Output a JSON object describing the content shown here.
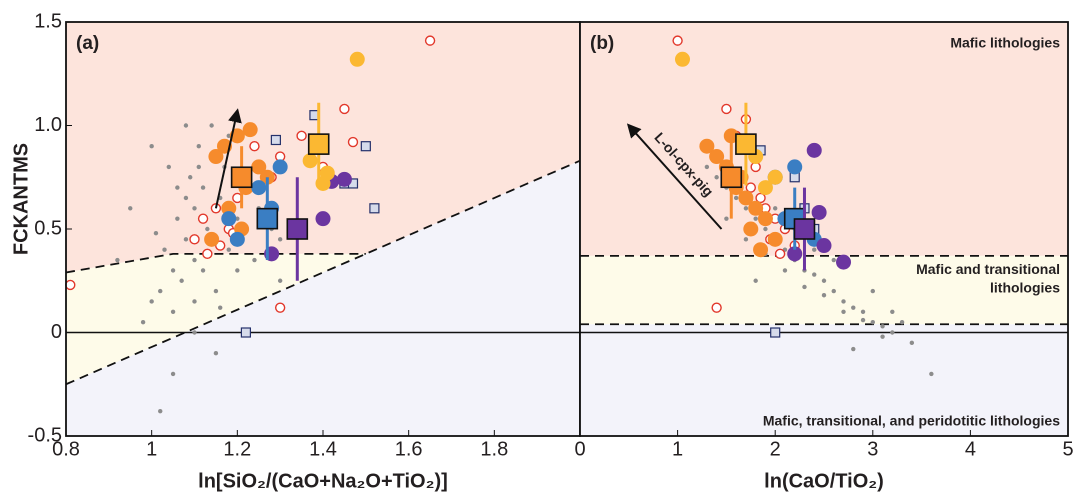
{
  "chart_data": [
    {
      "type": "scatter",
      "panel_label": "(a)",
      "ylabel": "FCKANTMS",
      "xlabel": "ln[SiO₂/(CaO+Na₂O+TiO₂)]",
      "xlim": [
        0.8,
        2.0
      ],
      "ylim": [
        -0.5,
        1.5
      ],
      "xticks": [
        0.8,
        1,
        1.2,
        1.4,
        1.6,
        1.8
      ],
      "yticks": [
        -0.5,
        0,
        0.5,
        {
          "value": 1,
          "label": "1.0"
        },
        1.5
      ],
      "hlines": [
        0
      ],
      "regions": [
        {
          "color": "#fde4dc",
          "x": [
            0.8,
            2.0,
            2.0,
            1.5,
            1.05,
            0.8
          ],
          "y": [
            1.5,
            1.5,
            0.83,
            0.38,
            0.38,
            0.29
          ]
        },
        {
          "color": "#fefbe9",
          "x": [
            0.8,
            1.05,
            1.5,
            0.8
          ],
          "y": [
            0.29,
            0.38,
            0.38,
            -0.25
          ]
        },
        {
          "color": "#f3f3fa",
          "x": [
            0.8,
            2.0,
            2.0,
            0.8
          ],
          "y": [
            -0.25,
            0.83,
            -0.5,
            -0.5
          ]
        }
      ],
      "boundaries": [
        {
          "x": [
            0.8,
            1.05,
            1.5
          ],
          "y": [
            0.29,
            0.38,
            0.38
          ]
        },
        {
          "x": [
            0.8,
            2.0
          ],
          "y": [
            -0.25,
            0.83
          ]
        }
      ],
      "series": [
        {
          "marker": "dot",
          "color": "#8c8c8c",
          "x": [
            1.02,
            1.05,
            1.08,
            1.1,
            1.12,
            1.15,
            1.18,
            1.2,
            1.05,
            1.07,
            1.1,
            1.13,
            1.16,
            1.0,
            0.98,
            1.03,
            1.06,
            1.09,
            1.11,
            1.14,
            1.17,
            1.22,
            1.25,
            1.28,
            1.3,
            1.12,
            1.15,
            1.08,
            1.04,
            0.95,
            1.0,
            1.1,
            1.2,
            1.15,
            1.05,
            1.02,
            1.18,
            1.24,
            1.3,
            1.35,
            1.1,
            1.06,
            0.92,
            1.13,
            1.27,
            1.08,
            1.16,
            1.2,
            1.01,
            1.11
          ],
          "values": [
            0.2,
            0.3,
            0.45,
            0.6,
            0.7,
            0.85,
            0.95,
            1.05,
            0.1,
            0.25,
            0.35,
            0.5,
            0.65,
            0.15,
            0.05,
            0.4,
            0.55,
            0.75,
            0.9,
            1.0,
            0.8,
            0.7,
            0.6,
            0.5,
            0.45,
            0.3,
            0.2,
            0.65,
            0.8,
            0.6,
            0.9,
            0.15,
            0.3,
            -0.1,
            -0.2,
            -0.38,
            0.4,
            0.35,
            0.25,
            0.5,
            0.0,
            0.7,
            0.35,
            0.45,
            0.55,
            1.0,
            0.12,
            0.55,
            0.48,
            0.8
          ]
        },
        {
          "marker": "circle-open",
          "color": "#e2382b",
          "x": [
            1.1,
            1.12,
            1.15,
            1.18,
            1.2,
            1.22,
            1.25,
            1.28,
            1.3,
            1.13,
            1.16,
            1.19,
            1.24,
            1.35,
            1.4,
            1.45,
            1.65,
            1.47,
            0.81,
            1.3
          ],
          "values": [
            0.45,
            0.55,
            0.6,
            0.5,
            0.65,
            0.7,
            0.8,
            0.75,
            0.85,
            0.38,
            0.42,
            0.48,
            0.9,
            0.95,
            0.8,
            1.08,
            1.41,
            0.92,
            0.23,
            0.12
          ]
        },
        {
          "marker": "square-open",
          "color": "#25316b",
          "fill": "#d6dbeb",
          "x": [
            1.29,
            1.38,
            1.45,
            1.47,
            1.5,
            1.52,
            1.22
          ],
          "values": [
            0.93,
            1.05,
            0.72,
            0.72,
            0.9,
            0.6,
            0.0
          ]
        },
        {
          "marker": "circle",
          "color": "#f68b2c",
          "x": [
            1.15,
            1.17,
            1.2,
            1.22,
            1.25,
            1.18,
            1.21,
            1.14,
            1.27,
            1.23
          ],
          "values": [
            0.85,
            0.9,
            0.95,
            0.7,
            0.8,
            0.6,
            0.5,
            0.45,
            0.75,
            0.98
          ]
        },
        {
          "marker": "circle",
          "color": "#3a7ec3",
          "x": [
            1.2,
            1.25,
            1.28,
            1.3,
            1.18
          ],
          "values": [
            0.45,
            0.7,
            0.6,
            0.8,
            0.55
          ]
        },
        {
          "marker": "circle",
          "color": "#6b35a0",
          "x": [
            1.28,
            1.42,
            1.4,
            1.45
          ],
          "values": [
            0.38,
            0.73,
            0.55,
            0.74
          ]
        },
        {
          "marker": "circle",
          "color": "#fbb832",
          "x": [
            1.37,
            1.4,
            1.48,
            1.41
          ],
          "values": [
            0.83,
            0.72,
            1.32,
            0.77
          ]
        },
        {
          "marker": "square",
          "color": "#f68b2c",
          "x": [
            1.21
          ],
          "values": [
            0.75
          ],
          "errors": [
            0.15
          ]
        },
        {
          "marker": "square",
          "color": "#3a7ec3",
          "x": [
            1.27
          ],
          "values": [
            0.55
          ],
          "errors": [
            0.2
          ]
        },
        {
          "marker": "square",
          "color": "#6b35a0",
          "x": [
            1.34
          ],
          "values": [
            0.5
          ],
          "errors": [
            0.25
          ]
        },
        {
          "marker": "square",
          "color": "#fbb832",
          "x": [
            1.39
          ],
          "values": [
            0.91
          ],
          "errors": [
            0.2
          ]
        }
      ]
    },
    {
      "type": "scatter",
      "panel_label": "(b)",
      "xlabel": "ln(CaO/TiO₂)",
      "xlim": [
        0,
        5
      ],
      "ylim": [
        -0.5,
        1.5
      ],
      "xticks": [
        0,
        1,
        2,
        3,
        4,
        5
      ],
      "hlines": [
        0
      ],
      "regions": [
        {
          "color": "#fde4dc",
          "x": [
            0,
            5,
            5,
            0
          ],
          "y": [
            1.5,
            1.5,
            0.37,
            0.37
          ]
        },
        {
          "color": "#fefbe9",
          "x": [
            0,
            5,
            5,
            0
          ],
          "y": [
            0.37,
            0.37,
            0.04,
            0.04
          ]
        },
        {
          "color": "#f3f3fa",
          "x": [
            0,
            5,
            5,
            0
          ],
          "y": [
            0.04,
            0.04,
            -0.5,
            -0.5
          ]
        }
      ],
      "boundaries": [
        {
          "x": [
            0,
            5
          ],
          "y": [
            0.37,
            0.37
          ]
        },
        {
          "x": [
            0,
            5
          ],
          "y": [
            0.04,
            0.04
          ]
        }
      ],
      "region_labels": [
        [
          "Mafic lithologies"
        ],
        [
          "Mafic and transitional",
          "lithologies"
        ],
        [
          "Mafic, transitional, and peridotitic lithologies"
        ]
      ],
      "arrow_label": "L-ol-cpx-pig",
      "series": [
        {
          "marker": "dot",
          "color": "#8c8c8c",
          "x": [
            1.3,
            1.4,
            1.5,
            1.6,
            1.7,
            1.8,
            1.9,
            2.0,
            2.1,
            2.2,
            2.3,
            2.4,
            2.5,
            2.6,
            2.7,
            2.8,
            2.9,
            3.0,
            3.1,
            3.2,
            1.5,
            1.7,
            1.9,
            2.1,
            2.3,
            2.5,
            2.7,
            2.9,
            3.1,
            3.3,
            3.4,
            3.6,
            2.0,
            2.2,
            2.4,
            1.8,
            2.6,
            3.0,
            3.2,
            2.8
          ],
          "values": [
            0.8,
            0.75,
            0.7,
            0.65,
            0.6,
            0.55,
            0.5,
            0.45,
            0.4,
            0.35,
            0.3,
            0.28,
            0.25,
            0.2,
            0.15,
            0.12,
            0.1,
            0.05,
            0.03,
            0.0,
            0.55,
            0.45,
            0.38,
            0.3,
            0.22,
            0.18,
            0.1,
            0.06,
            -0.02,
            0.05,
            -0.05,
            -0.2,
            0.6,
            0.5,
            0.4,
            0.25,
            0.35,
            0.2,
            0.1,
            -0.08
          ]
        },
        {
          "marker": "circle-open",
          "color": "#e2382b",
          "x": [
            1.0,
            1.5,
            1.7,
            1.8,
            1.9,
            2.0,
            2.1,
            1.85,
            1.95,
            2.2,
            1.6,
            1.75,
            2.05,
            1.4,
            1.7
          ],
          "values": [
            1.41,
            1.08,
            0.9,
            0.8,
            0.6,
            0.55,
            0.5,
            0.65,
            0.45,
            0.42,
            0.95,
            0.7,
            0.38,
            0.12,
            1.03
          ]
        },
        {
          "marker": "square-open",
          "color": "#25316b",
          "fill": "#d6dbeb",
          "x": [
            1.85,
            2.2,
            2.3,
            2.4,
            2.0
          ],
          "values": [
            0.88,
            0.75,
            0.6,
            0.5,
            0.0
          ]
        },
        {
          "marker": "circle",
          "color": "#f68b2c",
          "x": [
            1.3,
            1.4,
            1.5,
            1.6,
            1.7,
            1.8,
            1.9,
            1.55,
            1.65,
            1.75,
            2.0,
            1.85
          ],
          "values": [
            0.9,
            0.85,
            0.8,
            0.7,
            0.65,
            0.6,
            0.55,
            0.95,
            0.75,
            0.5,
            0.45,
            0.4
          ]
        },
        {
          "marker": "circle",
          "color": "#3a7ec3",
          "x": [
            2.1,
            2.2,
            2.3,
            2.4,
            2.0
          ],
          "values": [
            0.55,
            0.8,
            0.5,
            0.45,
            0.75
          ]
        },
        {
          "marker": "circle",
          "color": "#6b35a0",
          "x": [
            2.45,
            2.4,
            2.5,
            2.7,
            2.2
          ],
          "values": [
            0.58,
            0.88,
            0.42,
            0.34,
            0.38
          ]
        },
        {
          "marker": "circle",
          "color": "#fbb832",
          "x": [
            1.05,
            2.0,
            1.9,
            1.8
          ],
          "values": [
            1.32,
            0.75,
            0.7,
            0.85
          ]
        },
        {
          "marker": "square",
          "color": "#f68b2c",
          "x": [
            1.55
          ],
          "values": [
            0.75
          ],
          "errors": [
            0.2
          ]
        },
        {
          "marker": "square",
          "color": "#fbb832",
          "x": [
            1.7
          ],
          "values": [
            0.91
          ],
          "errors": [
            0.2
          ]
        },
        {
          "marker": "square",
          "color": "#3a7ec3",
          "x": [
            2.2
          ],
          "values": [
            0.55
          ],
          "errors": [
            0.15
          ]
        },
        {
          "marker": "square",
          "color": "#6b35a0",
          "x": [
            2.3
          ],
          "values": [
            0.5
          ],
          "errors": [
            0.2
          ]
        }
      ]
    }
  ]
}
